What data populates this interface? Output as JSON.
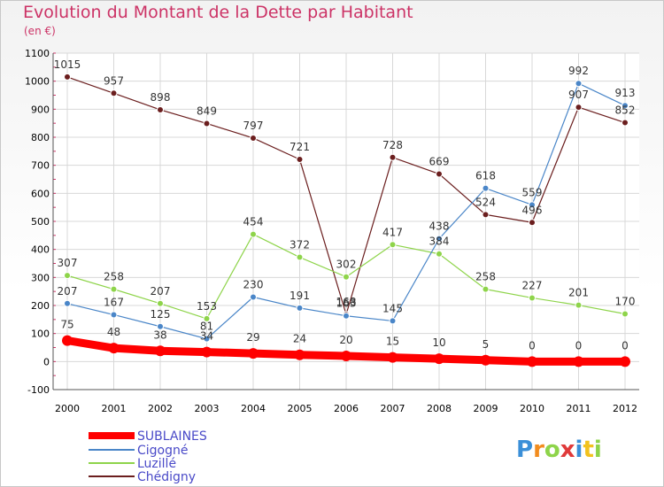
{
  "title": "Evolution du Montant de la Dette par Habitant",
  "subtitle": "(en €)",
  "logo": "Proxiti",
  "chart_data": {
    "type": "line",
    "x": [
      "2000",
      "2001",
      "2002",
      "2003",
      "2004",
      "2005",
      "2006",
      "2007",
      "2008",
      "2009",
      "2010",
      "2011",
      "2012"
    ],
    "ylim": [
      -100,
      1100
    ],
    "yticks": [
      -100,
      0,
      100,
      200,
      300,
      400,
      500,
      600,
      700,
      800,
      900,
      1000,
      1100
    ],
    "grid": true,
    "legend_position": "bottom-left",
    "series": [
      {
        "name": "SUBLAINES",
        "color": "#ff0000",
        "values": [
          75,
          48,
          38,
          34,
          29,
          24,
          20,
          15,
          10,
          5,
          0,
          0,
          0
        ]
      },
      {
        "name": "Cigogné",
        "color": "#4a86c8",
        "values": [
          207,
          167,
          125,
          81,
          230,
          191,
          163,
          145,
          438,
          618,
          559,
          992,
          913
        ]
      },
      {
        "name": "Luzillé",
        "color": "#8ed44a",
        "values": [
          307,
          258,
          207,
          153,
          454,
          372,
          302,
          417,
          384,
          258,
          227,
          201,
          170
        ]
      },
      {
        "name": "Chédigny",
        "color": "#6b1e1e",
        "values": [
          1015,
          957,
          898,
          849,
          797,
          721,
          168,
          728,
          669,
          524,
          496,
          907,
          852
        ]
      }
    ]
  }
}
